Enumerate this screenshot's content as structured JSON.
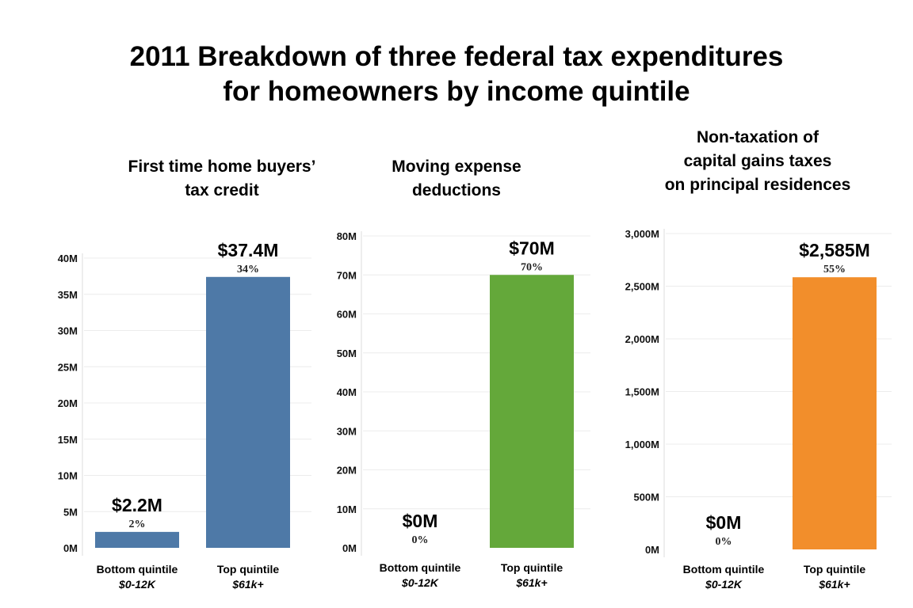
{
  "title": {
    "line1": "2011 Breakdown of three federal tax expenditures",
    "line2": "for homeowners by income quintile"
  },
  "chart_data": [
    {
      "type": "bar",
      "title_lines": [
        "First time home buyers’",
        "tax credit"
      ],
      "categories": [
        "Bottom quintile",
        "Top quintile"
      ],
      "category_sublabels": [
        "$0-12K",
        "$61k+"
      ],
      "values": [
        2.2,
        37.4
      ],
      "value_labels": [
        "$2.2M",
        "$37.4M"
      ],
      "share_labels": [
        "2%",
        "34%"
      ],
      "ylim": [
        0,
        40
      ],
      "yticks": [
        0,
        5,
        10,
        15,
        20,
        25,
        30,
        35,
        40
      ],
      "ytick_labels": [
        "0M",
        "5M",
        "10M",
        "15M",
        "20M",
        "25M",
        "30M",
        "35M",
        "40M"
      ],
      "color": "#4e79a7",
      "grid": true
    },
    {
      "type": "bar",
      "title_lines": [
        "Moving expense",
        "deductions"
      ],
      "categories": [
        "Bottom quintile",
        "Top quintile"
      ],
      "category_sublabels": [
        "$0-12K",
        "$61k+"
      ],
      "values": [
        0,
        70
      ],
      "value_labels": [
        "$0M",
        "$70M"
      ],
      "share_labels": [
        "0%",
        "70%"
      ],
      "ylim": [
        0,
        80
      ],
      "yticks": [
        0,
        10,
        20,
        30,
        40,
        50,
        60,
        70,
        80
      ],
      "ytick_labels": [
        "0M",
        "10M",
        "20M",
        "30M",
        "40M",
        "50M",
        "60M",
        "70M",
        "80M"
      ],
      "color": "#64a83a",
      "grid": true
    },
    {
      "type": "bar",
      "title_lines": [
        "Non-taxation of",
        "capital gains taxes",
        "on principal residences"
      ],
      "categories": [
        "Bottom quintile",
        "Top quintile"
      ],
      "category_sublabels": [
        "$0-12K",
        "$61k+"
      ],
      "values": [
        0,
        2585
      ],
      "value_labels": [
        "$0M",
        "$2,585M"
      ],
      "share_labels": [
        "0%",
        "55%"
      ],
      "ylim": [
        0,
        3000
      ],
      "yticks": [
        0,
        500,
        1000,
        1500,
        2000,
        2500,
        3000
      ],
      "ytick_labels": [
        "0M",
        "500M",
        "1,000M",
        "1,500M",
        "2,000M",
        "2,500M",
        "3,000M"
      ],
      "color": "#f28e2b",
      "grid": true
    }
  ]
}
